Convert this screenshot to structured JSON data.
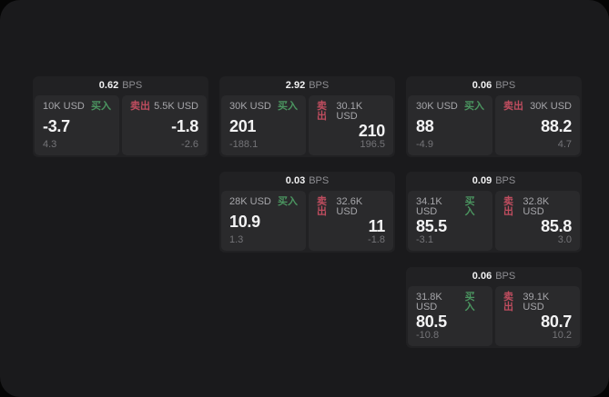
{
  "labels": {
    "bps_unit": "BPS",
    "buy": "买入",
    "sell": "卖出"
  },
  "colors": {
    "page_background": "#050505",
    "container_background": "#1a1a1c",
    "card_background": "#212123",
    "panel_background": "#2a2a2c",
    "buy_green": "#4b9560",
    "sell_red": "#bf4d5f"
  },
  "cards": [
    {
      "bps": "0.62",
      "buy": {
        "amount": "10K USD",
        "value": "-3.7",
        "sub": "4.3"
      },
      "sell": {
        "amount": "5.5K USD",
        "value": "-1.8",
        "sub": "-2.6"
      }
    },
    {
      "bps": "2.92",
      "buy": {
        "amount": "30K USD",
        "value": "201",
        "sub": "-188.1"
      },
      "sell": {
        "amount": "30.1K USD",
        "value": "210",
        "sub": "196.5"
      }
    },
    {
      "bps": "0.06",
      "buy": {
        "amount": "30K USD",
        "value": "88",
        "sub": "-4.9"
      },
      "sell": {
        "amount": "30K USD",
        "value": "88.2",
        "sub": "4.7"
      }
    },
    {
      "bps": "0.03",
      "buy": {
        "amount": "28K USD",
        "value": "10.9",
        "sub": "1.3"
      },
      "sell": {
        "amount": "32.6K USD",
        "value": "11",
        "sub": "-1.8"
      }
    },
    {
      "bps": "0.09",
      "buy": {
        "amount": "34.1K USD",
        "value": "85.5",
        "sub": "-3.1"
      },
      "sell": {
        "amount": "32.8K USD",
        "value": "85.8",
        "sub": "3.0"
      }
    },
    {
      "bps": "0.06",
      "buy": {
        "amount": "31.8K USD",
        "value": "80.5",
        "sub": "-10.8"
      },
      "sell": {
        "amount": "39.1K USD",
        "value": "80.7",
        "sub": "10.2"
      }
    }
  ]
}
